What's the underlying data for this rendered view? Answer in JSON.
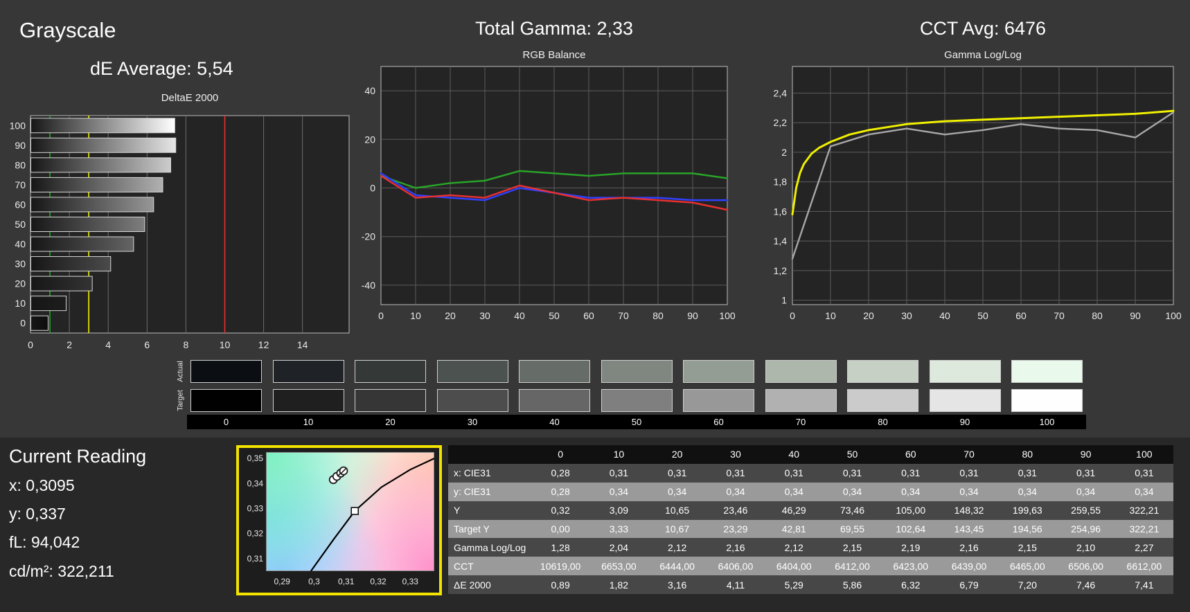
{
  "header": {
    "grayscale_title": "Grayscale",
    "de_average": "dE Average: 5,54",
    "total_gamma": "Total Gamma: 2,33",
    "cct_avg": "CCT Avg: 6476"
  },
  "current_reading": {
    "title": "Current Reading",
    "x": "x: 0,3095",
    "y": "y: 0,337",
    "fl": "fL: 94,042",
    "cdm2": "cd/m²: 322,211"
  },
  "swatches": {
    "row_labels": [
      "Actual",
      "Target"
    ],
    "steps": [
      "0",
      "10",
      "20",
      "30",
      "40",
      "50",
      "60",
      "70",
      "80",
      "90",
      "100"
    ],
    "actual_colors": [
      "#0b0e13",
      "#1f2327",
      "#343938",
      "#4c524f",
      "#666d68",
      "#7f8780",
      "#949d93",
      "#aeb7ac",
      "#c6d0c4",
      "#dde9dc",
      "#e9f9ec"
    ],
    "target_colors": [
      "#010102",
      "#1f1f1f",
      "#363636",
      "#4d4d4d",
      "#666666",
      "#7f7f7f",
      "#989898",
      "#b1b1b1",
      "#cbcbcb",
      "#e5e5e5",
      "#fefefe"
    ]
  },
  "table": {
    "columns": [
      "0",
      "10",
      "20",
      "30",
      "40",
      "50",
      "60",
      "70",
      "80",
      "90",
      "100"
    ],
    "rows": [
      {
        "label": "x: CIE31",
        "values": [
          "0,28",
          "0,31",
          "0,31",
          "0,31",
          "0,31",
          "0,31",
          "0,31",
          "0,31",
          "0,31",
          "0,31",
          "0,31"
        ]
      },
      {
        "label": "y: CIE31",
        "values": [
          "0,28",
          "0,34",
          "0,34",
          "0,34",
          "0,34",
          "0,34",
          "0,34",
          "0,34",
          "0,34",
          "0,34",
          "0,34"
        ]
      },
      {
        "label": "Y",
        "values": [
          "0,32",
          "3,09",
          "10,65",
          "23,46",
          "46,29",
          "73,46",
          "105,00",
          "148,32",
          "199,63",
          "259,55",
          "322,21"
        ]
      },
      {
        "label": "Target Y",
        "values": [
          "0,00",
          "3,33",
          "10,67",
          "23,29",
          "42,81",
          "69,55",
          "102,64",
          "143,45",
          "194,56",
          "254,96",
          "322,21"
        ]
      },
      {
        "label": "Gamma Log/Log",
        "values": [
          "1,28",
          "2,04",
          "2,12",
          "2,16",
          "2,12",
          "2,15",
          "2,19",
          "2,16",
          "2,15",
          "2,10",
          "2,27"
        ]
      },
      {
        "label": "CCT",
        "values": [
          "10619,00",
          "6653,00",
          "6444,00",
          "6406,00",
          "6404,00",
          "6412,00",
          "6423,00",
          "6439,00",
          "6465,00",
          "6506,00",
          "6612,00"
        ]
      },
      {
        "label": "ΔE 2000",
        "values": [
          "0,89",
          "1,82",
          "3,16",
          "4,11",
          "5,29",
          "5,86",
          "6,32",
          "6,79",
          "7,20",
          "7,46",
          "7,41"
        ]
      }
    ]
  },
  "chart_data": [
    {
      "id": "deltae2000",
      "type": "bar",
      "orientation": "horizontal",
      "title": "DeltaE 2000",
      "categories": [
        "100",
        "90",
        "80",
        "70",
        "60",
        "50",
        "40",
        "30",
        "20",
        "10",
        "0"
      ],
      "values": [
        7.41,
        7.46,
        7.2,
        6.79,
        6.32,
        5.86,
        5.29,
        4.11,
        3.16,
        1.82,
        0.89
      ],
      "xlim": [
        0,
        16.4
      ],
      "xticks": [
        {
          "v": 0,
          "label": "0"
        },
        {
          "v": 2,
          "label": "2"
        },
        {
          "v": 4,
          "label": "4"
        },
        {
          "v": 6,
          "label": "6"
        },
        {
          "v": 8,
          "label": "8"
        },
        {
          "v": 10,
          "label": "10"
        },
        {
          "v": 12,
          "label": "12"
        },
        {
          "v": 14,
          "label": "14"
        }
      ],
      "ref_lines": [
        {
          "v": 1,
          "color": "#1fa51f"
        },
        {
          "v": 3,
          "color": "#e8e800"
        },
        {
          "v": 10,
          "color": "#e03030"
        }
      ],
      "bar_gradient_start": "#161616",
      "bar_gradient_ends": [
        "#ffffff",
        "#e6e6e6",
        "#cccccc",
        "#b1b1b1",
        "#979797",
        "#7e7e7e",
        "#646464",
        "#4b4b4b",
        "#333333",
        "#1d1d1d",
        "#0d0d0d"
      ],
      "plot_bg": "#242424",
      "border": "#bdbdbd"
    },
    {
      "id": "rgb_balance",
      "type": "line",
      "title": "RGB Balance",
      "xlim": [
        0,
        100
      ],
      "ylim": [
        -48,
        50
      ],
      "xticks": [
        {
          "v": 0,
          "label": "0"
        },
        {
          "v": 10,
          "label": "10"
        },
        {
          "v": 20,
          "label": "20"
        },
        {
          "v": 30,
          "label": "30"
        },
        {
          "v": 40,
          "label": "40"
        },
        {
          "v": 50,
          "label": "50"
        },
        {
          "v": 60,
          "label": "60"
        },
        {
          "v": 70,
          "label": "70"
        },
        {
          "v": 80,
          "label": "80"
        },
        {
          "v": 90,
          "label": "90"
        },
        {
          "v": 100,
          "label": "100"
        }
      ],
      "yticks": [
        {
          "v": -40,
          "label": "-40"
        },
        {
          "v": -20,
          "label": "-20"
        },
        {
          "v": 0,
          "label": "0"
        },
        {
          "v": 20,
          "label": "20"
        },
        {
          "v": 40,
          "label": "40"
        }
      ],
      "series": [
        {
          "name": "green",
          "color": "#28a428",
          "x": [
            0,
            10,
            20,
            30,
            40,
            50,
            60,
            70,
            80,
            90,
            100
          ],
          "y": [
            5,
            0,
            2,
            3,
            7,
            6,
            5,
            6,
            6,
            6,
            4
          ]
        },
        {
          "name": "blue",
          "color": "#3040ff",
          "x": [
            0,
            10,
            20,
            30,
            40,
            50,
            60,
            70,
            80,
            90,
            100
          ],
          "y": [
            6,
            -3,
            -4,
            -5,
            0,
            -2,
            -4,
            -4,
            -4,
            -5,
            -5
          ]
        },
        {
          "name": "red",
          "color": "#e83030",
          "x": [
            0,
            10,
            20,
            30,
            40,
            50,
            60,
            70,
            80,
            90,
            100
          ],
          "y": [
            5,
            -4,
            -3,
            -4,
            1,
            -2,
            -5,
            -4,
            -5,
            -6,
            -9
          ]
        }
      ]
    },
    {
      "id": "gamma_loglog",
      "type": "line",
      "title": "Gamma Log/Log",
      "xlim": [
        0,
        100
      ],
      "ylim": [
        0.97,
        2.58
      ],
      "xticks": [
        {
          "v": 0,
          "label": "0"
        },
        {
          "v": 10,
          "label": "10"
        },
        {
          "v": 20,
          "label": "20"
        },
        {
          "v": 30,
          "label": "30"
        },
        {
          "v": 40,
          "label": "40"
        },
        {
          "v": 50,
          "label": "50"
        },
        {
          "v": 60,
          "label": "60"
        },
        {
          "v": 70,
          "label": "70"
        },
        {
          "v": 80,
          "label": "80"
        },
        {
          "v": 90,
          "label": "90"
        },
        {
          "v": 100,
          "label": "100"
        }
      ],
      "yticks": [
        {
          "v": 1,
          "label": "1"
        },
        {
          "v": 1.2,
          "label": "1,2"
        },
        {
          "v": 1.4,
          "label": "1,4"
        },
        {
          "v": 1.6,
          "label": "1,6"
        },
        {
          "v": 1.8,
          "label": "1,8"
        },
        {
          "v": 2,
          "label": "2"
        },
        {
          "v": 2.2,
          "label": "2,2"
        },
        {
          "v": 2.4,
          "label": "2,4"
        }
      ],
      "series": [
        {
          "name": "target-gamma",
          "color": "#f0f000",
          "width": 3,
          "x": [
            0,
            1,
            2,
            3,
            5,
            7,
            10,
            15,
            20,
            30,
            40,
            50,
            60,
            70,
            80,
            90,
            100
          ],
          "y": [
            1.58,
            1.76,
            1.86,
            1.92,
            1.99,
            2.03,
            2.07,
            2.12,
            2.15,
            2.19,
            2.21,
            2.22,
            2.23,
            2.24,
            2.25,
            2.26,
            2.28
          ]
        },
        {
          "name": "measured-gamma",
          "color": "#a8a8a8",
          "width": 2.4,
          "x": [
            0,
            10,
            20,
            30,
            40,
            50,
            60,
            70,
            80,
            90,
            100
          ],
          "y": [
            1.28,
            2.04,
            2.12,
            2.16,
            2.12,
            2.15,
            2.19,
            2.16,
            2.15,
            2.1,
            2.27
          ]
        }
      ]
    },
    {
      "id": "cie_diagram",
      "type": "scatter",
      "title": "CIE xy chromaticity (zoom)",
      "xlim": [
        0.285,
        0.3375
      ],
      "ylim": [
        0.305,
        0.3525
      ],
      "xticks": [
        {
          "v": 0.29,
          "label": "0,29"
        },
        {
          "v": 0.3,
          "label": "0,3"
        },
        {
          "v": 0.31,
          "label": "0,31"
        },
        {
          "v": 0.32,
          "label": "0,32"
        },
        {
          "v": 0.33,
          "label": "0,33"
        }
      ],
      "yticks": [
        {
          "v": 0.31,
          "label": "0,31"
        },
        {
          "v": 0.32,
          "label": "0,32"
        },
        {
          "v": 0.33,
          "label": "0,33"
        },
        {
          "v": 0.34,
          "label": "0,34"
        },
        {
          "v": 0.35,
          "label": "0,35"
        }
      ],
      "locus": [
        [
          0.299,
          0.305
        ],
        [
          0.306,
          0.3175
        ],
        [
          0.3127,
          0.329
        ],
        [
          0.321,
          0.3385
        ],
        [
          0.33,
          0.3455
        ],
        [
          0.3375,
          0.35
        ]
      ],
      "measure_points": [
        [
          0.306,
          0.3415
        ],
        [
          0.3071,
          0.3428
        ],
        [
          0.3083,
          0.3441
        ],
        [
          0.3092,
          0.345
        ]
      ],
      "slashed_points": [
        2,
        3
      ],
      "reference_square": [
        0.3127,
        0.329
      ]
    }
  ]
}
